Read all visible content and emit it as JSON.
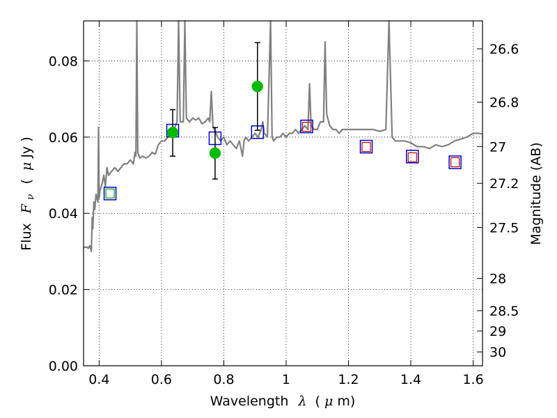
{
  "chart_data": {
    "type": "scatter",
    "title": "",
    "xlabel": {
      "prefix": "Wavelength",
      "symbol": "λ",
      "unit_open": "(",
      "unit_symbol": "μ",
      "unit_rest": "m)"
    },
    "ylabel": {
      "prefix": "Flux",
      "symbol": "F",
      "subscript": "ν",
      "unit_open": "(",
      "unit_symbol": "μ",
      "unit_rest": "Jy )"
    },
    "y2label": "Magnitude (AB)",
    "xlim": [
      0.35,
      1.63
    ],
    "ylim": [
      0.0,
      0.0905
    ],
    "x_ticks": [
      {
        "value": 0.4,
        "label": "0.4"
      },
      {
        "value": 0.6,
        "label": "0.6"
      },
      {
        "value": 0.8,
        "label": "0.8"
      },
      {
        "value": 1.0,
        "label": "1"
      },
      {
        "value": 1.2,
        "label": "1.2"
      },
      {
        "value": 1.4,
        "label": "1.4"
      },
      {
        "value": 1.6,
        "label": "1.6"
      }
    ],
    "y_ticks": [
      {
        "value": 0.0,
        "label": "0.00"
      },
      {
        "value": 0.02,
        "label": "0.02"
      },
      {
        "value": 0.04,
        "label": "0.04"
      },
      {
        "value": 0.06,
        "label": "0.06"
      },
      {
        "value": 0.08,
        "label": "0.08"
      }
    ],
    "mag_ticks": [
      {
        "value": 26.6,
        "label": "26.6"
      },
      {
        "value": 26.8,
        "label": "26.8"
      },
      {
        "value": 27.0,
        "label": "27"
      },
      {
        "value": 27.2,
        "label": "27.2"
      },
      {
        "value": 27.5,
        "label": "27.5"
      },
      {
        "value": 28.0,
        "label": "28"
      },
      {
        "value": 28.5,
        "label": "28.5"
      },
      {
        "value": 29.0,
        "label": "29"
      },
      {
        "value": 30.0,
        "label": "30"
      }
    ],
    "grid": true,
    "colors": {
      "spectrum": "#808080",
      "observed": "#00bb00",
      "model_blue": "#0000cc",
      "model_red": "#cc0000",
      "model_green": "#00aa00",
      "errorbar": "#000000"
    },
    "series": [
      {
        "kind": "line",
        "points": [
          [
            0.35,
            0.031
          ],
          [
            0.36,
            0.0312
          ],
          [
            0.365,
            0.0308
          ],
          [
            0.37,
            0.0315
          ],
          [
            0.375,
            0.03
          ],
          [
            0.378,
            0.039
          ],
          [
            0.38,
            0.036
          ],
          [
            0.383,
            0.043
          ],
          [
            0.386,
            0.041
          ],
          [
            0.39,
            0.045
          ],
          [
            0.393,
            0.044
          ],
          [
            0.396,
            0.043
          ],
          [
            0.398,
            0.0625
          ],
          [
            0.4,
            0.044
          ],
          [
            0.403,
            0.046
          ],
          [
            0.41,
            0.048
          ],
          [
            0.415,
            0.05
          ],
          [
            0.42,
            0.047
          ],
          [
            0.425,
            0.052
          ],
          [
            0.43,
            0.05
          ],
          [
            0.44,
            0.051
          ],
          [
            0.45,
            0.052
          ],
          [
            0.46,
            0.051
          ],
          [
            0.47,
            0.052
          ],
          [
            0.48,
            0.053
          ],
          [
            0.49,
            0.053
          ],
          [
            0.5,
            0.054
          ],
          [
            0.51,
            0.053
          ],
          [
            0.515,
            0.056
          ],
          [
            0.518,
            0.055
          ],
          [
            0.521,
            0.0905
          ],
          [
            0.524,
            0.056
          ],
          [
            0.53,
            0.0545
          ],
          [
            0.54,
            0.055
          ],
          [
            0.55,
            0.0545
          ],
          [
            0.56,
            0.055
          ],
          [
            0.57,
            0.056
          ],
          [
            0.58,
            0.0555
          ],
          [
            0.59,
            0.058
          ],
          [
            0.6,
            0.059
          ],
          [
            0.61,
            0.059
          ],
          [
            0.62,
            0.06
          ],
          [
            0.63,
            0.061
          ],
          [
            0.64,
            0.062
          ],
          [
            0.65,
            0.064
          ],
          [
            0.655,
            0.0905
          ],
          [
            0.66,
            0.064
          ],
          [
            0.67,
            0.064
          ],
          [
            0.675,
            0.0905
          ],
          [
            0.68,
            0.065
          ],
          [
            0.69,
            0.064
          ],
          [
            0.7,
            0.065
          ],
          [
            0.71,
            0.0645
          ],
          [
            0.72,
            0.065
          ],
          [
            0.73,
            0.0635
          ],
          [
            0.74,
            0.064
          ],
          [
            0.75,
            0.065
          ],
          [
            0.755,
            0.064
          ],
          [
            0.76,
            0.072
          ],
          [
            0.765,
            0.063
          ],
          [
            0.78,
            0.06
          ],
          [
            0.79,
            0.059
          ],
          [
            0.8,
            0.06
          ],
          [
            0.81,
            0.058
          ],
          [
            0.82,
            0.059
          ],
          [
            0.83,
            0.058
          ],
          [
            0.84,
            0.057
          ],
          [
            0.85,
            0.059
          ],
          [
            0.86,
            0.055
          ],
          [
            0.865,
            0.059
          ],
          [
            0.87,
            0.06
          ],
          [
            0.88,
            0.059
          ],
          [
            0.89,
            0.06
          ],
          [
            0.9,
            0.061
          ],
          [
            0.91,
            0.06
          ],
          [
            0.92,
            0.062
          ],
          [
            0.925,
            0.064
          ],
          [
            0.93,
            0.061
          ],
          [
            0.94,
            0.06
          ],
          [
            0.95,
            0.0905
          ],
          [
            0.955,
            0.06
          ],
          [
            0.96,
            0.059
          ],
          [
            0.97,
            0.06
          ],
          [
            0.98,
            0.06
          ],
          [
            0.99,
            0.061
          ],
          [
            1.0,
            0.06
          ],
          [
            1.01,
            0.061
          ],
          [
            1.02,
            0.061
          ],
          [
            1.03,
            0.062
          ],
          [
            1.04,
            0.061
          ],
          [
            1.05,
            0.062
          ],
          [
            1.06,
            0.063
          ],
          [
            1.07,
            0.062
          ],
          [
            1.075,
            0.074
          ],
          [
            1.08,
            0.063
          ],
          [
            1.09,
            0.062
          ],
          [
            1.1,
            0.062
          ],
          [
            1.11,
            0.064
          ],
          [
            1.12,
            0.064
          ],
          [
            1.125,
            0.085
          ],
          [
            1.13,
            0.066
          ],
          [
            1.14,
            0.063
          ],
          [
            1.15,
            0.062
          ],
          [
            1.16,
            0.062
          ],
          [
            1.17,
            0.061
          ],
          [
            1.18,
            0.062
          ],
          [
            1.19,
            0.062
          ],
          [
            1.2,
            0.062
          ],
          [
            1.22,
            0.062
          ],
          [
            1.24,
            0.062
          ],
          [
            1.26,
            0.062
          ],
          [
            1.28,
            0.062
          ],
          [
            1.3,
            0.0615
          ],
          [
            1.32,
            0.062
          ],
          [
            1.33,
            0.0905
          ],
          [
            1.34,
            0.06
          ],
          [
            1.35,
            0.059
          ],
          [
            1.36,
            0.059
          ],
          [
            1.38,
            0.059
          ],
          [
            1.4,
            0.0585
          ],
          [
            1.42,
            0.0575
          ],
          [
            1.44,
            0.0575
          ],
          [
            1.46,
            0.057
          ],
          [
            1.48,
            0.058
          ],
          [
            1.5,
            0.0575
          ],
          [
            1.52,
            0.058
          ],
          [
            1.54,
            0.059
          ],
          [
            1.56,
            0.0595
          ],
          [
            1.58,
            0.06
          ],
          [
            1.6,
            0.061
          ],
          [
            1.62,
            0.061
          ],
          [
            1.63,
            0.0608
          ]
        ]
      },
      {
        "kind": "model_squares_blue",
        "points": [
          [
            0.435,
            0.0452
          ],
          [
            0.636,
            0.0617
          ],
          [
            0.772,
            0.0597
          ],
          [
            0.908,
            0.0613
          ],
          [
            1.066,
            0.0628
          ],
          [
            1.257,
            0.0575
          ],
          [
            1.405,
            0.0549
          ],
          [
            1.542,
            0.0534
          ]
        ]
      },
      {
        "kind": "model_squares_red",
        "points": [
          [
            1.066,
            0.0627
          ],
          [
            1.257,
            0.0574
          ],
          [
            1.405,
            0.0547
          ],
          [
            1.542,
            0.0534
          ]
        ]
      },
      {
        "kind": "model_squares_green",
        "points": [
          [
            0.435,
            0.0452
          ]
        ]
      },
      {
        "kind": "observed_points",
        "points": [
          {
            "x": 0.636,
            "y": 0.0612,
            "ylow": 0.055,
            "yhigh": 0.0672
          },
          {
            "x": 0.772,
            "y": 0.0558,
            "ylow": 0.049,
            "yhigh": 0.0625
          },
          {
            "x": 0.908,
            "y": 0.0733,
            "ylow": 0.0618,
            "yhigh": 0.0848
          }
        ]
      }
    ]
  }
}
